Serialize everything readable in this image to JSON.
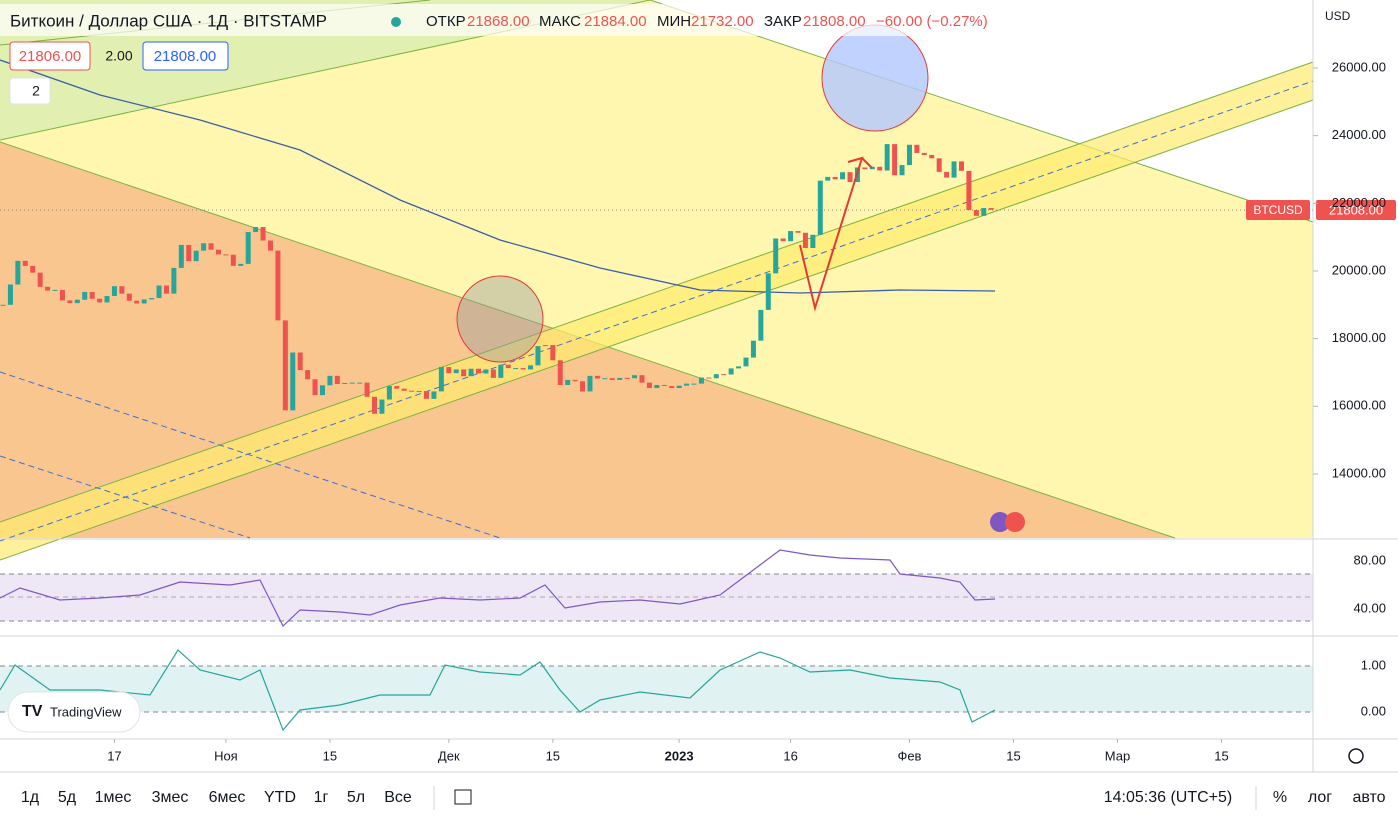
{
  "header": {
    "symbol": "Биткоин / Доллар США · 1Д · BITSTAMP",
    "open_label": "ОТКР",
    "open": "21868.00",
    "high_label": "МАКС",
    "high": "21884.00",
    "low_label": "МИН",
    "low": "21732.00",
    "close_label": "ЗАКР",
    "close": "21808.00",
    "change": "−60.00 (−0.27%)",
    "bid": "21806.00",
    "spread": "2.00",
    "ask": "21808.00",
    "indicators": "2",
    "currency": "USD"
  },
  "chart_data": {
    "type": "candlestick",
    "ticker": "BTCUSD",
    "last_label": "21808.00",
    "close": [
      19000,
      19600,
      20300,
      20150,
      19950,
      19530,
      19420,
      19440,
      19130,
      19050,
      19150,
      19380,
      19180,
      19070,
      19260,
      19550,
      19330,
      19120,
      19040,
      19160,
      19200,
      19570,
      19330,
      20090,
      20770,
      20290,
      20600,
      20820,
      20630,
      20490,
      20480,
      20150,
      20210,
      21150,
      21300,
      20900,
      20600,
      18540,
      15880,
      17590,
      17070,
      16800,
      16330,
      16620,
      16900,
      16660,
      16690,
      16700,
      16700,
      16280,
      15780,
      16200,
      16600,
      16520,
      16460,
      16440,
      16450,
      16220,
      16440,
      17160,
      16980,
      17090,
      16890,
      17110,
      16970,
      17090,
      16840,
      17230,
      17130,
      17130,
      17090,
      17210,
      17780,
      17810,
      17360,
      16630,
      16780,
      16740,
      16440,
      16900,
      16820,
      16830,
      16780,
      16840,
      16830,
      16920,
      16700,
      16540,
      16630,
      16600,
      16540,
      16610,
      16670,
      16670,
      16850,
      16830,
      16950,
      16940,
      17120,
      17180,
      17440,
      17940,
      18850,
      19930,
      20960,
      20880,
      21180,
      21130,
      20680,
      21070,
      22670,
      22780,
      22710,
      22920,
      22630,
      23060,
      23010,
      23080,
      22970,
      23750,
      22830,
      23130,
      23730,
      23490,
      23430,
      23330,
      22930,
      22760,
      23240,
      22960,
      21800,
      21630,
      21860,
      21808
    ],
    "ylim": [
      12107,
      28010
    ],
    "yticks": [
      {
        "value": 14000,
        "label": "14000.00"
      },
      {
        "value": 16000,
        "label": "16000.00"
      },
      {
        "value": 18000,
        "label": "18000.00"
      },
      {
        "value": 20000,
        "label": "20000.00"
      },
      {
        "value": 22000,
        "label": "22000.00"
      },
      {
        "value": 24000,
        "label": "24000.00"
      },
      {
        "value": 26000,
        "label": "26000.00"
      }
    ],
    "xticks": [
      {
        "value": 15,
        "label": "17"
      },
      {
        "value": 30,
        "label": "Ноя"
      },
      {
        "value": 44,
        "label": "15"
      },
      {
        "value": 60,
        "label": "Дек"
      },
      {
        "value": 74,
        "label": "15"
      },
      {
        "value": 91,
        "label": "2023"
      },
      {
        "value": 106,
        "label": "16"
      },
      {
        "value": 122,
        "label": "Фев"
      },
      {
        "value": 136,
        "label": "15"
      },
      {
        "value": 150,
        "label": "Мар"
      },
      {
        "value": 164,
        "label": "15"
      }
    ],
    "rsi": {
      "yticks": [
        {
          "value": 80,
          "label": "80.00"
        },
        {
          "value": 40,
          "label": "40.00"
        }
      ]
    },
    "osc": {
      "yticks": [
        {
          "value": 1,
          "label": "1.00"
        },
        {
          "value": 0,
          "label": "0.00"
        }
      ]
    }
  },
  "logo": "TradingView",
  "toolbar": {
    "ranges": [
      "1д",
      "5д",
      "1мес",
      "3мес",
      "6мес",
      "YTD",
      "1г",
      "5л",
      "Все"
    ],
    "time": "14:05:36 (UTC+5)",
    "percent": "%",
    "log": "лог",
    "auto": "авто"
  }
}
